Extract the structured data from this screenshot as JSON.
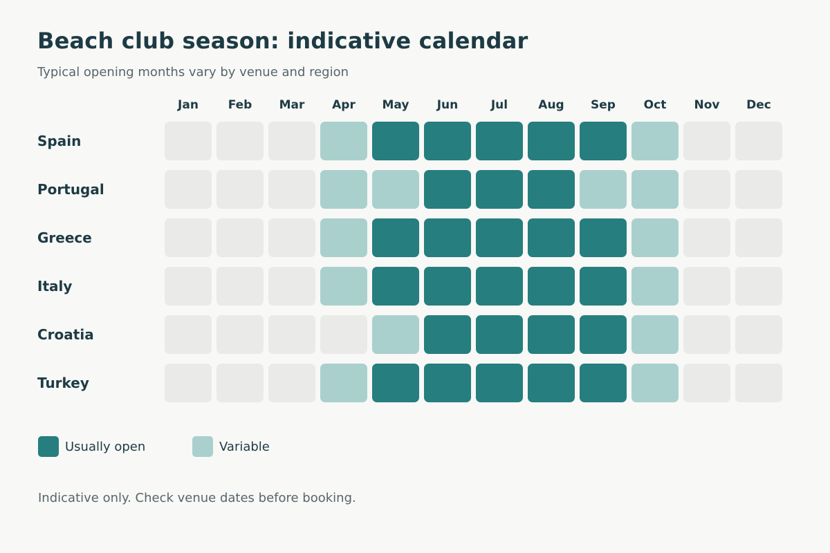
{
  "title": "Beach club season: indicative calendar",
  "subtitle": "Typical opening months vary by venue and region",
  "footnote": "Indicative only. Check venue dates before booking.",
  "colors": {
    "open": "#267e7e",
    "variable": "#aad0cd",
    "closed": "#eaebe8",
    "text": "#1d3b44",
    "muted": "#55666b",
    "background": "#f8f8f6"
  },
  "legend": [
    {
      "key": "open",
      "label": "Usually open"
    },
    {
      "key": "variable",
      "label": "Variable"
    }
  ],
  "chart_data": {
    "type": "heatmap",
    "title": "Beach club season: indicative calendar",
    "subtitle": "Typical opening months vary by venue and region",
    "columns": [
      "Jan",
      "Feb",
      "Mar",
      "Apr",
      "May",
      "Jun",
      "Jul",
      "Aug",
      "Sep",
      "Oct",
      "Nov",
      "Dec"
    ],
    "rows": [
      "Spain",
      "Portugal",
      "Greece",
      "Italy",
      "Croatia",
      "Turkey"
    ],
    "levels": {
      "0": "closed",
      "1": "Variable",
      "2": "Usually open"
    },
    "values": [
      [
        0,
        0,
        0,
        1,
        2,
        2,
        2,
        2,
        2,
        1,
        0,
        0
      ],
      [
        0,
        0,
        0,
        1,
        1,
        2,
        2,
        2,
        1,
        1,
        0,
        0
      ],
      [
        0,
        0,
        0,
        1,
        2,
        2,
        2,
        2,
        2,
        1,
        0,
        0
      ],
      [
        0,
        0,
        0,
        1,
        2,
        2,
        2,
        2,
        2,
        1,
        0,
        0
      ],
      [
        0,
        0,
        0,
        0,
        1,
        2,
        2,
        2,
        2,
        1,
        0,
        0
      ],
      [
        0,
        0,
        0,
        1,
        2,
        2,
        2,
        2,
        2,
        1,
        0,
        0
      ]
    ],
    "legend_position": "bottom-left",
    "grid": false
  }
}
